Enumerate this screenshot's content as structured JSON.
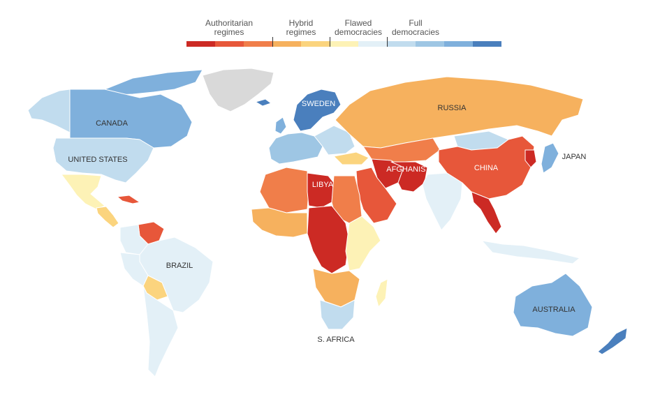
{
  "legend": {
    "categories": [
      {
        "label": "Authoritarian\nregimes",
        "colors": [
          "#cc2a24",
          "#e7573a",
          "#f07e4a"
        ]
      },
      {
        "label": "Hybrid\nregimes",
        "colors": [
          "#f6b15e",
          "#fbd47e",
          "#fdf2b6"
        ]
      },
      {
        "label": "Flawed\ndemocracies",
        "colors": [
          "#e3f0f7",
          "#c1dcee",
          "#9ec6e4"
        ]
      },
      {
        "label": "Full\ndemocracies",
        "colors": [
          "#7fb0dc",
          "#4a7fbd"
        ]
      }
    ]
  },
  "map_labels": {
    "canada": "CANADA",
    "united_states": "UNITED STATES",
    "brazil": "BRAZIL",
    "russia": "RUSSIA",
    "sweden": "SWEDEN",
    "libya": "LIBYA",
    "afghanistan": "AFGHANISTAN",
    "china": "CHINA",
    "japan": "JAPAN",
    "australia": "AUSTRALIA",
    "s_africa": "S. AFRICA"
  },
  "colors": {
    "no_data": "#d9d9d9",
    "authoritarian_dark": "#cc2a24",
    "authoritarian_mid": "#e7573a",
    "authoritarian_light": "#f07e4a",
    "hybrid_dark": "#f6b15e",
    "hybrid_mid": "#fbd47e",
    "hybrid_light": "#fdf2b6",
    "flawed_light": "#e3f0f7",
    "flawed_mid": "#c1dcee",
    "flawed_dark": "#9ec6e4",
    "full_light": "#7fb0dc",
    "full_dark": "#4a7fbd"
  }
}
